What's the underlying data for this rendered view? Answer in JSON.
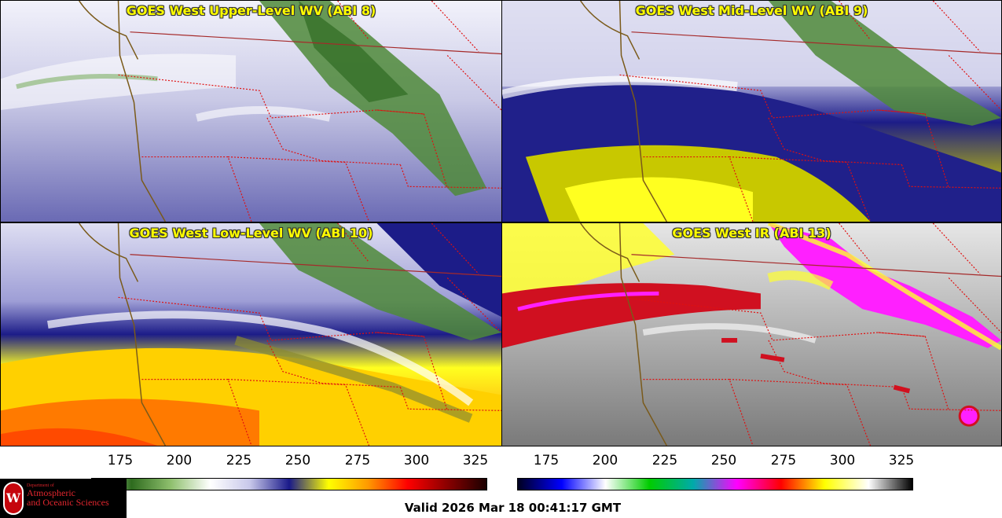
{
  "panels": [
    {
      "id": "upper",
      "title": "GOES West Upper-Level WV (ABI 8)"
    },
    {
      "id": "mid",
      "title": "GOES West Mid-Level WV (ABI 9)"
    },
    {
      "id": "low",
      "title": "GOES West Low-Level WV (ABI 10)"
    },
    {
      "id": "ir",
      "title": "GOES West IR (ABI 13)"
    }
  ],
  "colorbars": {
    "wv": {
      "ticks": [
        "175",
        "200",
        "225",
        "250",
        "275",
        "300",
        "325"
      ],
      "colors": [
        "#f4fff0",
        "#2e6b1e",
        "#8fc06e",
        "#ffffff",
        "#c8c8ea",
        "#1a1a8a",
        "#ffff00",
        "#ff9900",
        "#ff0000",
        "#8b0000",
        "#1a0000"
      ]
    },
    "ir": {
      "ticks": [
        "175",
        "200",
        "225",
        "250",
        "275",
        "300",
        "325"
      ],
      "colors": [
        "#000020",
        "#0000ff",
        "#ffffff",
        "#00cc00",
        "#00aaaa",
        "#ff00ff",
        "#ff0000",
        "#ffff00",
        "#ffffff",
        "#000000"
      ]
    }
  },
  "logo": {
    "line1": "Department of",
    "line2": "Atmospheric",
    "line3": "and Oceanic Sciences",
    "crest": "W"
  },
  "valid_time": "Valid 2026 Mar 18 00:41:17 GMT"
}
